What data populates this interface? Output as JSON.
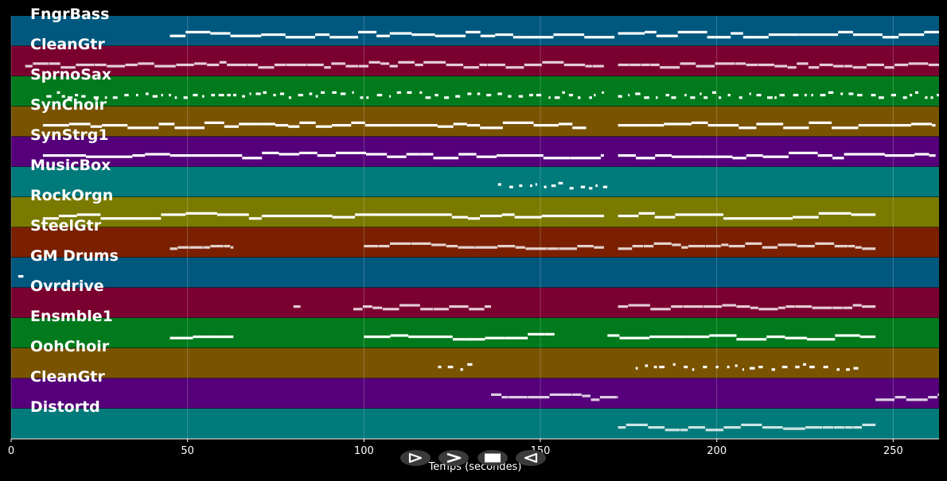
{
  "chart_data": {
    "type": "piano-roll",
    "xlabel": "Temps (secondes)",
    "xlim": [
      0,
      263
    ],
    "x_ticks": [
      0,
      50,
      100,
      150,
      200,
      250
    ],
    "grid": true,
    "tracks": [
      {
        "name": "FngrBass",
        "color": "#00587f",
        "pattern": "solid",
        "segments": [
          [
            45,
            171
          ],
          [
            172,
            263
          ]
        ]
      },
      {
        "name": "CleanGtr",
        "color": "#7a0030",
        "pattern": "dashed",
        "segments": [
          [
            4,
            168
          ],
          [
            172,
            263
          ]
        ]
      },
      {
        "name": "SprnoSax",
        "color": "#007a1c",
        "pattern": "dotted",
        "segments": [
          [
            10,
            168
          ],
          [
            172,
            263
          ]
        ]
      },
      {
        "name": "SynChoir",
        "color": "#7a5300",
        "pattern": "solid",
        "segments": [
          [
            9,
            163
          ],
          [
            172,
            262
          ]
        ]
      },
      {
        "name": "SynStrg1",
        "color": "#55007a",
        "pattern": "solid",
        "segments": [
          [
            9,
            168
          ],
          [
            172,
            262
          ]
        ]
      },
      {
        "name": "MusicBox",
        "color": "#007a7a",
        "pattern": "dotted",
        "segments": [
          [
            138,
            170
          ]
        ]
      },
      {
        "name": "RockOrgn",
        "color": "#7a7a00",
        "pattern": "solid",
        "segments": [
          [
            9,
            168
          ],
          [
            172,
            245
          ]
        ]
      },
      {
        "name": "SteelGtr",
        "color": "#7a2000",
        "pattern": "dashed",
        "segments": [
          [
            45,
            63
          ],
          [
            100,
            168
          ],
          [
            172,
            245
          ]
        ]
      },
      {
        "name": "GM Drums",
        "color": "#00587f",
        "pattern": "dotted",
        "segments": [
          [
            2,
            4
          ]
        ]
      },
      {
        "name": "Ovrdrive",
        "color": "#7a0030",
        "pattern": "dashed",
        "segments": [
          [
            80,
            82
          ],
          [
            97,
            136
          ],
          [
            172,
            245
          ]
        ]
      },
      {
        "name": "Ensmble1",
        "color": "#007a1c",
        "pattern": "solid",
        "segments": [
          [
            45,
            63
          ],
          [
            100,
            154
          ],
          [
            169,
            245
          ]
        ]
      },
      {
        "name": "OohChoir",
        "color": "#7a5300",
        "pattern": "dotted",
        "segments": [
          [
            121,
            131
          ],
          [
            177,
            241
          ]
        ]
      },
      {
        "name": "CleanGtr",
        "color": "#55007a",
        "pattern": "dashed",
        "segments": [
          [
            136,
            172
          ],
          [
            245,
            263
          ]
        ]
      },
      {
        "name": "Distortd",
        "color": "#007a7a",
        "pattern": "dashed",
        "segments": [
          [
            172,
            245
          ]
        ]
      }
    ]
  },
  "controls": [
    {
      "name": "play-forward",
      "icon": "triangle-right-icon"
    },
    {
      "name": "fast-forward",
      "icon": "chevron-right-icon"
    },
    {
      "name": "stop",
      "icon": "stop-square-icon"
    },
    {
      "name": "play-backward",
      "icon": "triangle-left-icon"
    }
  ]
}
